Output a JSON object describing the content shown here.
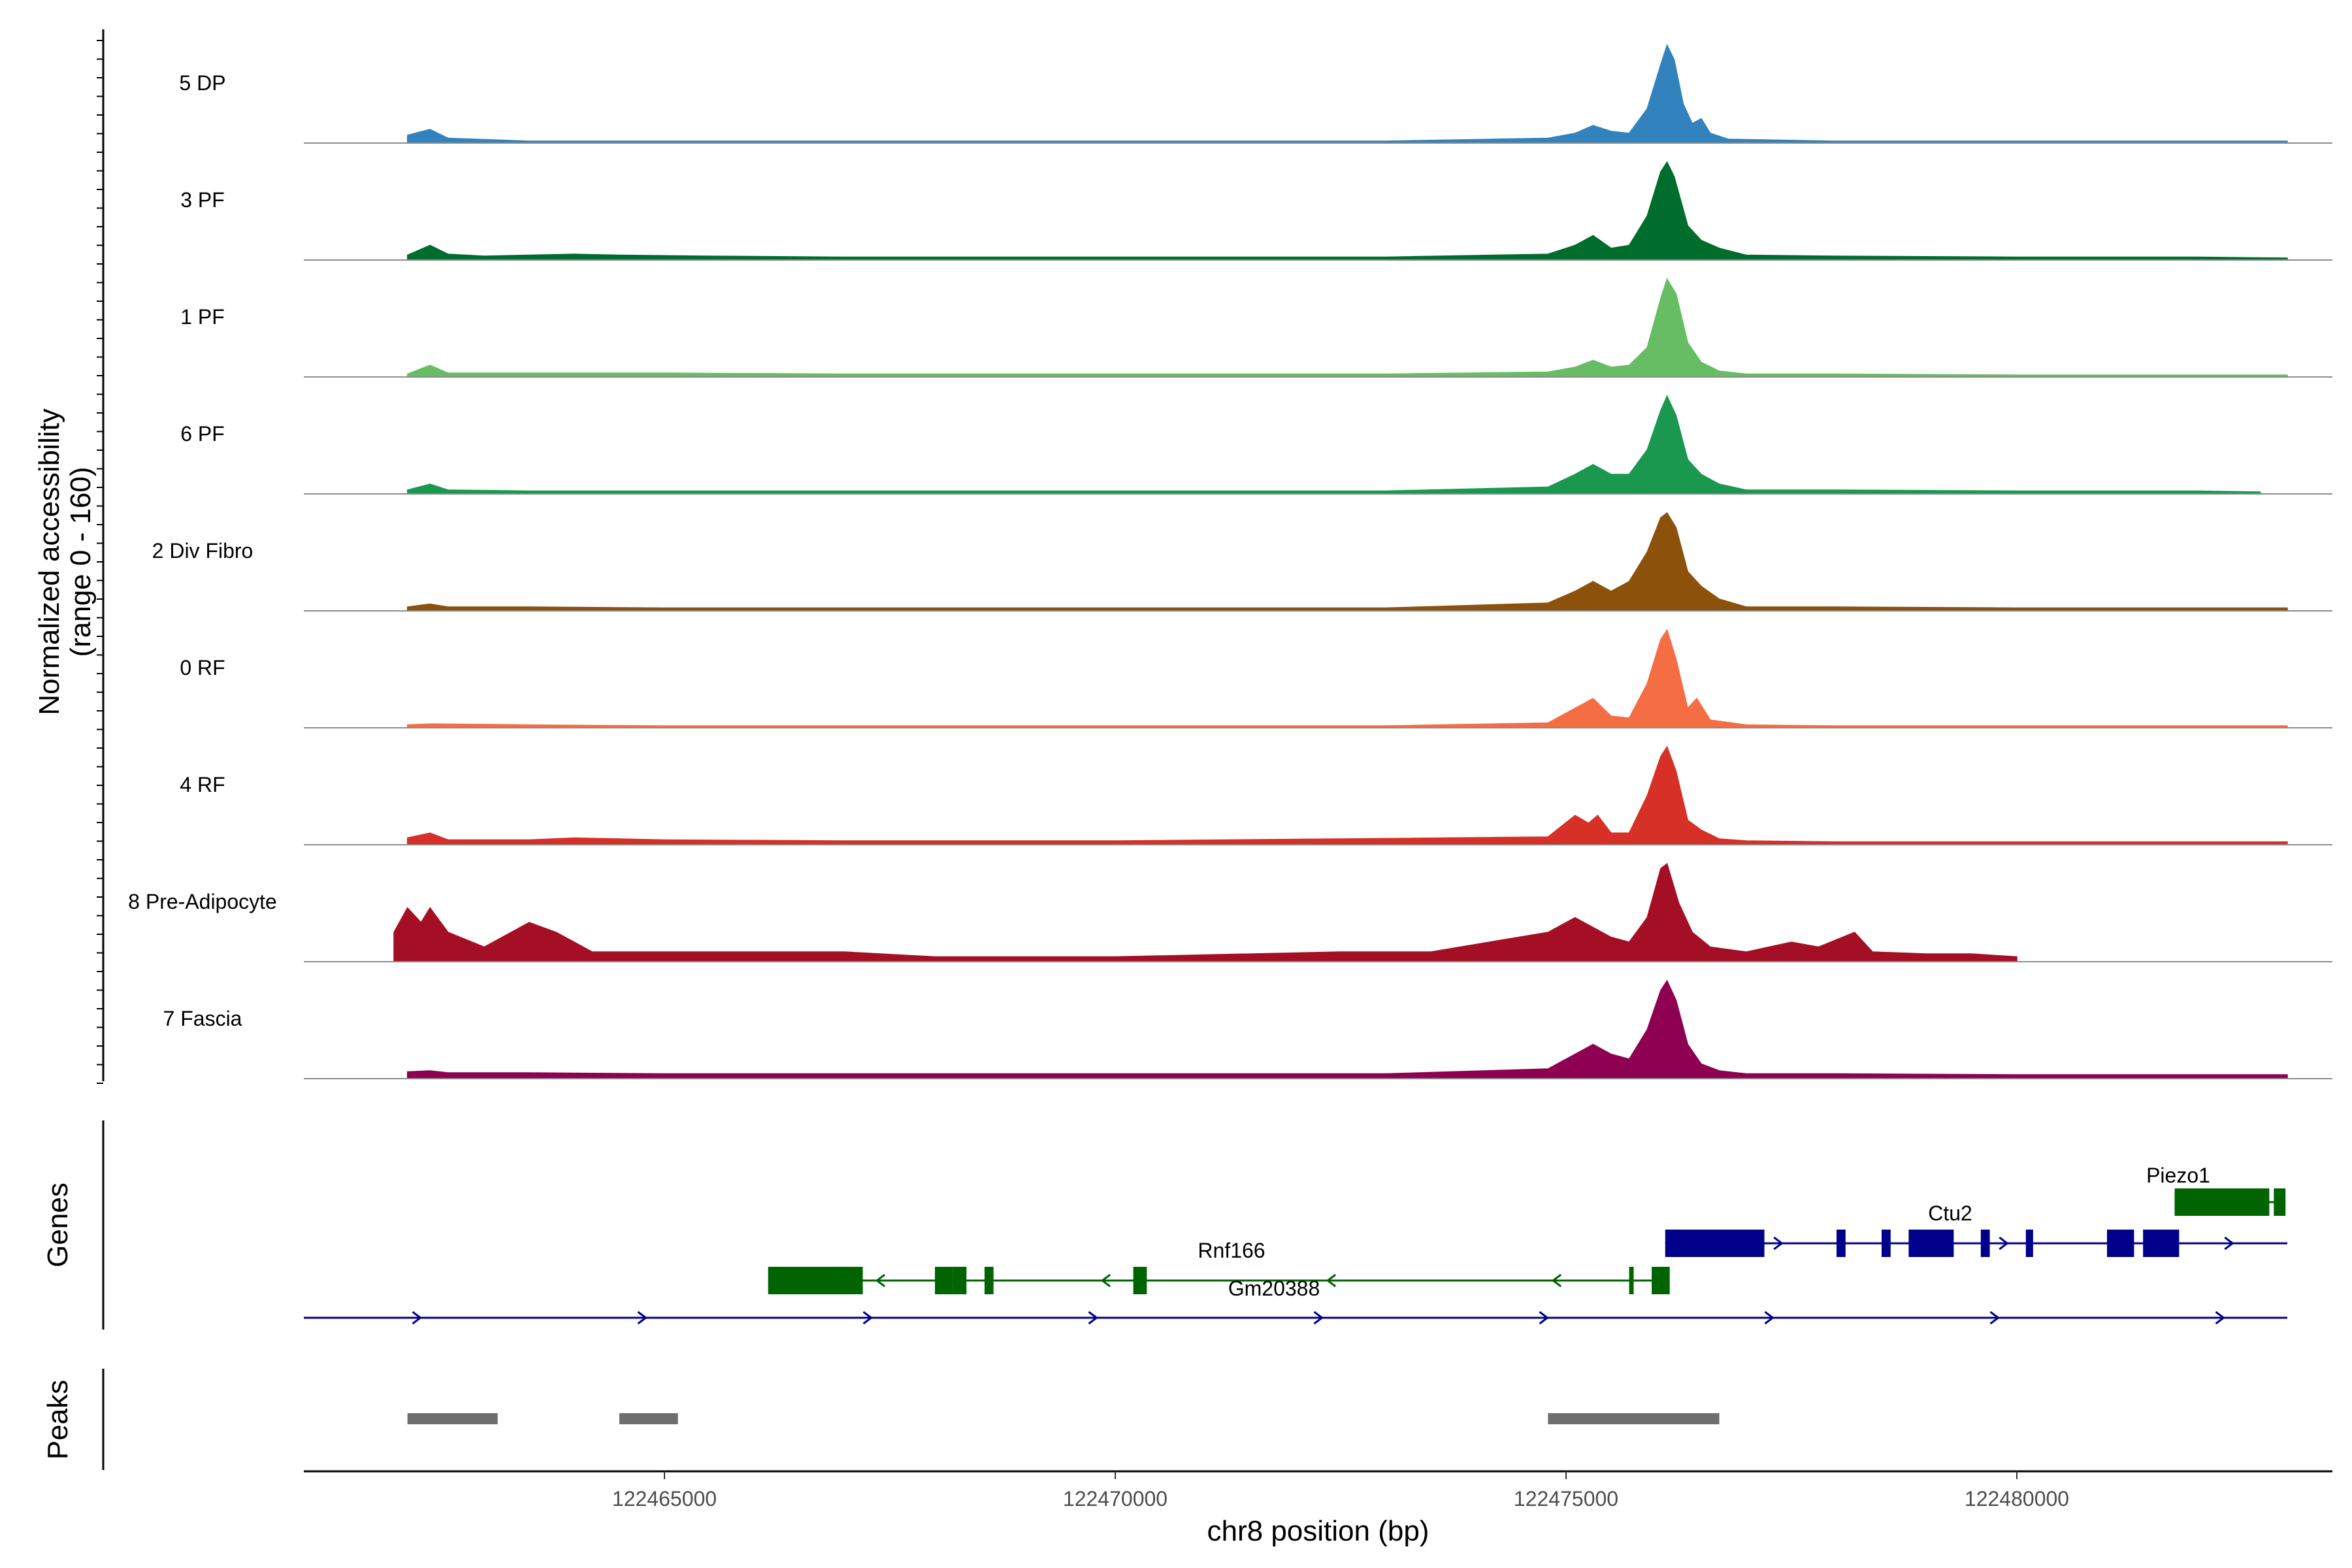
{
  "chart_data": {
    "type": "area",
    "title": "",
    "ylabel": "Normalized accessibility\n(range 0 - 160)",
    "ylim": [
      0,
      160
    ],
    "xlabel": "chr8 position (bp)",
    "xlim": [
      122461000,
      122483500
    ],
    "x_ticks": [
      122465000,
      122470000,
      122475000,
      122480000
    ],
    "x_tick_labels": [
      "122465000",
      "122470000",
      "122475000",
      "122480000"
    ],
    "grid": false,
    "tracks": [
      {
        "name": "5 DP",
        "color": "#3182BD",
        "points": [
          [
            122462150,
            0.08
          ],
          [
            122462400,
            0.14
          ],
          [
            122462600,
            0.05
          ],
          [
            122463500,
            0.02
          ],
          [
            122465000,
            0.02
          ],
          [
            122467000,
            0.02
          ],
          [
            122470000,
            0.02
          ],
          [
            122473000,
            0.02
          ],
          [
            122474800,
            0.05
          ],
          [
            122475100,
            0.1
          ],
          [
            122475300,
            0.18
          ],
          [
            122475500,
            0.12
          ],
          [
            122475700,
            0.1
          ],
          [
            122475900,
            0.35
          ],
          [
            122476050,
            0.8
          ],
          [
            122476120,
            1.0
          ],
          [
            122476200,
            0.85
          ],
          [
            122476300,
            0.4
          ],
          [
            122476400,
            0.2
          ],
          [
            122476500,
            0.25
          ],
          [
            122476600,
            0.1
          ],
          [
            122476800,
            0.04
          ],
          [
            122478000,
            0.02
          ],
          [
            122480000,
            0.02
          ],
          [
            122482000,
            0.02
          ],
          [
            122483000,
            0.02
          ]
        ]
      },
      {
        "name": "3 PF",
        "color": "#006D2C",
        "points": [
          [
            122462150,
            0.05
          ],
          [
            122462400,
            0.15
          ],
          [
            122462600,
            0.06
          ],
          [
            122463000,
            0.04
          ],
          [
            122463500,
            0.05
          ],
          [
            122464000,
            0.06
          ],
          [
            122464500,
            0.05
          ],
          [
            122465500,
            0.04
          ],
          [
            122467000,
            0.03
          ],
          [
            122470000,
            0.03
          ],
          [
            122473000,
            0.03
          ],
          [
            122474800,
            0.06
          ],
          [
            122475100,
            0.15
          ],
          [
            122475300,
            0.25
          ],
          [
            122475500,
            0.12
          ],
          [
            122475700,
            0.15
          ],
          [
            122475900,
            0.45
          ],
          [
            122476050,
            0.9
          ],
          [
            122476120,
            1.0
          ],
          [
            122476200,
            0.85
          ],
          [
            122476350,
            0.35
          ],
          [
            122476500,
            0.2
          ],
          [
            122476700,
            0.12
          ],
          [
            122477000,
            0.05
          ],
          [
            122478000,
            0.04
          ],
          [
            122480000,
            0.03
          ],
          [
            122482000,
            0.03
          ],
          [
            122483000,
            0.02
          ]
        ]
      },
      {
        "name": "1 PF",
        "color": "#66BD63",
        "points": [
          [
            122462150,
            0.03
          ],
          [
            122462400,
            0.12
          ],
          [
            122462600,
            0.04
          ],
          [
            122463500,
            0.04
          ],
          [
            122465000,
            0.04
          ],
          [
            122467000,
            0.03
          ],
          [
            122470000,
            0.03
          ],
          [
            122473000,
            0.03
          ],
          [
            122474800,
            0.05
          ],
          [
            122475100,
            0.1
          ],
          [
            122475300,
            0.17
          ],
          [
            122475500,
            0.1
          ],
          [
            122475700,
            0.12
          ],
          [
            122475900,
            0.3
          ],
          [
            122476050,
            0.8
          ],
          [
            122476120,
            1.0
          ],
          [
            122476220,
            0.85
          ],
          [
            122476350,
            0.35
          ],
          [
            122476500,
            0.15
          ],
          [
            122476700,
            0.06
          ],
          [
            122477000,
            0.03
          ],
          [
            122478000,
            0.03
          ],
          [
            122480000,
            0.02
          ],
          [
            122483000,
            0.02
          ]
        ]
      },
      {
        "name": "6 PF",
        "color": "#1A9850",
        "points": [
          [
            122462150,
            0.04
          ],
          [
            122462400,
            0.1
          ],
          [
            122462600,
            0.04
          ],
          [
            122463500,
            0.03
          ],
          [
            122465000,
            0.03
          ],
          [
            122467000,
            0.03
          ],
          [
            122470000,
            0.03
          ],
          [
            122473000,
            0.03
          ],
          [
            122474800,
            0.07
          ],
          [
            122475100,
            0.2
          ],
          [
            122475300,
            0.3
          ],
          [
            122475500,
            0.2
          ],
          [
            122475700,
            0.2
          ],
          [
            122475900,
            0.45
          ],
          [
            122476050,
            0.85
          ],
          [
            122476120,
            1.0
          ],
          [
            122476220,
            0.8
          ],
          [
            122476350,
            0.35
          ],
          [
            122476500,
            0.2
          ],
          [
            122476700,
            0.1
          ],
          [
            122477000,
            0.04
          ],
          [
            122478000,
            0.04
          ],
          [
            122480000,
            0.03
          ],
          [
            122482000,
            0.03
          ],
          [
            122482700,
            0.02
          ]
        ]
      },
      {
        "name": "2 Div Fibro",
        "color": "#8C510A",
        "points": [
          [
            122462150,
            0.04
          ],
          [
            122462400,
            0.07
          ],
          [
            122462600,
            0.04
          ],
          [
            122463500,
            0.04
          ],
          [
            122465000,
            0.03
          ],
          [
            122467000,
            0.03
          ],
          [
            122470000,
            0.03
          ],
          [
            122473000,
            0.03
          ],
          [
            122474800,
            0.08
          ],
          [
            122475100,
            0.2
          ],
          [
            122475300,
            0.3
          ],
          [
            122475500,
            0.2
          ],
          [
            122475700,
            0.3
          ],
          [
            122475900,
            0.6
          ],
          [
            122476050,
            0.95
          ],
          [
            122476120,
            1.0
          ],
          [
            122476220,
            0.85
          ],
          [
            122476350,
            0.4
          ],
          [
            122476500,
            0.25
          ],
          [
            122476700,
            0.12
          ],
          [
            122477000,
            0.04
          ],
          [
            122478000,
            0.04
          ],
          [
            122480000,
            0.03
          ],
          [
            122483000,
            0.03
          ]
        ]
      },
      {
        "name": "0 RF",
        "color": "#F46D43",
        "points": [
          [
            122462150,
            0.03
          ],
          [
            122462400,
            0.04
          ],
          [
            122463500,
            0.03
          ],
          [
            122465000,
            0.02
          ],
          [
            122467000,
            0.02
          ],
          [
            122470000,
            0.02
          ],
          [
            122473000,
            0.02
          ],
          [
            122474800,
            0.05
          ],
          [
            122475100,
            0.2
          ],
          [
            122475300,
            0.3
          ],
          [
            122475500,
            0.12
          ],
          [
            122475700,
            0.1
          ],
          [
            122475900,
            0.45
          ],
          [
            122476050,
            0.9
          ],
          [
            122476120,
            1.0
          ],
          [
            122476220,
            0.7
          ],
          [
            122476350,
            0.2
          ],
          [
            122476450,
            0.3
          ],
          [
            122476600,
            0.08
          ],
          [
            122477000,
            0.03
          ],
          [
            122478000,
            0.02
          ],
          [
            122480000,
            0.02
          ],
          [
            122483000,
            0.02
          ]
        ]
      },
      {
        "name": "4 RF",
        "color": "#D73027",
        "points": [
          [
            122462150,
            0.07
          ],
          [
            122462400,
            0.12
          ],
          [
            122462600,
            0.05
          ],
          [
            122463500,
            0.05
          ],
          [
            122464000,
            0.07
          ],
          [
            122465000,
            0.05
          ],
          [
            122467000,
            0.04
          ],
          [
            122470000,
            0.04
          ],
          [
            122472500,
            0.06
          ],
          [
            122474800,
            0.08
          ],
          [
            122475100,
            0.3
          ],
          [
            122475250,
            0.22
          ],
          [
            122475350,
            0.3
          ],
          [
            122475500,
            0.12
          ],
          [
            122475700,
            0.12
          ],
          [
            122475900,
            0.5
          ],
          [
            122476050,
            0.9
          ],
          [
            122476120,
            1.0
          ],
          [
            122476220,
            0.75
          ],
          [
            122476350,
            0.25
          ],
          [
            122476500,
            0.15
          ],
          [
            122476700,
            0.06
          ],
          [
            122477000,
            0.04
          ],
          [
            122478000,
            0.03
          ],
          [
            122480000,
            0.03
          ],
          [
            122483000,
            0.03
          ]
        ]
      },
      {
        "name": "8 Pre-Adipocyte",
        "color": "#A50F25",
        "points": [
          [
            122462000,
            0.3
          ],
          [
            122462150,
            0.55
          ],
          [
            122462300,
            0.4
          ],
          [
            122462400,
            0.55
          ],
          [
            122462600,
            0.3
          ],
          [
            122463000,
            0.15
          ],
          [
            122463500,
            0.4
          ],
          [
            122463800,
            0.3
          ],
          [
            122464200,
            0.1
          ],
          [
            122465000,
            0.1
          ],
          [
            122466000,
            0.1
          ],
          [
            122467000,
            0.1
          ],
          [
            122468000,
            0.05
          ],
          [
            122470000,
            0.05
          ],
          [
            122472500,
            0.1
          ],
          [
            122473500,
            0.1
          ],
          [
            122474800,
            0.3
          ],
          [
            122475100,
            0.45
          ],
          [
            122475300,
            0.35
          ],
          [
            122475500,
            0.25
          ],
          [
            122475700,
            0.2
          ],
          [
            122475900,
            0.45
          ],
          [
            122476050,
            0.95
          ],
          [
            122476120,
            1.0
          ],
          [
            122476250,
            0.6
          ],
          [
            122476400,
            0.3
          ],
          [
            122476600,
            0.15
          ],
          [
            122477000,
            0.1
          ],
          [
            122477500,
            0.2
          ],
          [
            122477800,
            0.15
          ],
          [
            122478200,
            0.3
          ],
          [
            122478400,
            0.1
          ],
          [
            122479000,
            0.08
          ],
          [
            122479500,
            0.08
          ],
          [
            122480000,
            0.05
          ]
        ]
      },
      {
        "name": "7 Fascia",
        "color": "#8E0152",
        "points": [
          [
            122462150,
            0.07
          ],
          [
            122462400,
            0.08
          ],
          [
            122462600,
            0.06
          ],
          [
            122463500,
            0.06
          ],
          [
            122465000,
            0.05
          ],
          [
            122467000,
            0.05
          ],
          [
            122470000,
            0.05
          ],
          [
            122473000,
            0.05
          ],
          [
            122474800,
            0.1
          ],
          [
            122475100,
            0.25
          ],
          [
            122475300,
            0.35
          ],
          [
            122475500,
            0.25
          ],
          [
            122475700,
            0.2
          ],
          [
            122475900,
            0.5
          ],
          [
            122476050,
            0.9
          ],
          [
            122476120,
            1.0
          ],
          [
            122476220,
            0.8
          ],
          [
            122476350,
            0.35
          ],
          [
            122476500,
            0.15
          ],
          [
            122476700,
            0.08
          ],
          [
            122477000,
            0.05
          ],
          [
            122478000,
            0.05
          ],
          [
            122480000,
            0.04
          ],
          [
            122483000,
            0.04
          ]
        ]
      }
    ],
    "genes_track_label": "Genes",
    "genes": [
      {
        "name": "Piezo1",
        "strand": "-",
        "color": "#006400",
        "start": 122481750,
        "end": 122482980,
        "exons": [
          [
            122481750,
            122482800
          ],
          [
            122482850,
            122482980
          ]
        ]
      },
      {
        "name": "Ctu2",
        "strand": "+",
        "color": "#00008B",
        "start": 122476100,
        "end": 122483000,
        "exons": [
          [
            122476100,
            122477200
          ],
          [
            122478000,
            122478100
          ],
          [
            122478500,
            122478600
          ],
          [
            122478800,
            122479300
          ],
          [
            122479600,
            122479700
          ],
          [
            122480100,
            122480180
          ],
          [
            122481000,
            122481300
          ],
          [
            122481400,
            122481800
          ]
        ]
      },
      {
        "name": "Rnf166",
        "strand": "-",
        "color": "#006400",
        "start": 122466150,
        "end": 122476150,
        "exons": [
          [
            122466150,
            122467200
          ],
          [
            122468000,
            122468200
          ],
          [
            122468200,
            122468350
          ],
          [
            122468550,
            122468650
          ],
          [
            122470200,
            122470350
          ],
          [
            122475700,
            122475750
          ],
          [
            122475950,
            122476150
          ]
        ]
      },
      {
        "name": "Gm20388",
        "strand": "+",
        "color": "#00008B",
        "start": 122461000,
        "end": 122483000,
        "exons": []
      }
    ],
    "peaks_track_label": "Peaks",
    "peaks": [
      {
        "start": 122462150,
        "end": 122463150
      },
      {
        "start": 122464500,
        "end": 122465150
      },
      {
        "start": 122474800,
        "end": 122476700
      }
    ]
  }
}
